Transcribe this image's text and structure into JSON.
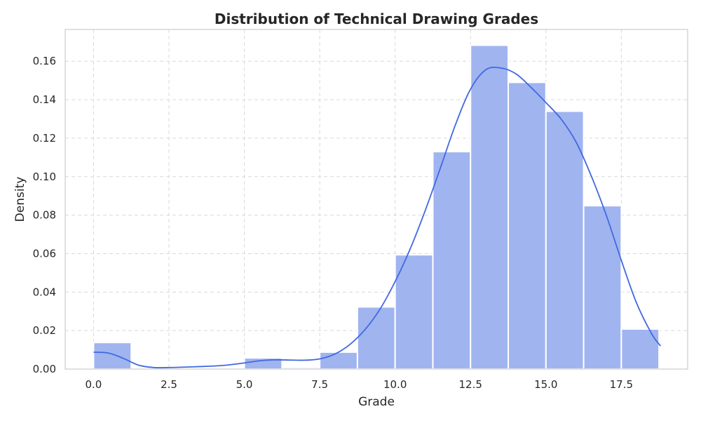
{
  "chart_data": {
    "type": "bar",
    "title": "Distribution of Technical Drawing Grades",
    "xlabel": "Grade",
    "ylabel": "Density",
    "xlim": [
      -0.94,
      19.7
    ],
    "ylim": [
      0,
      0.1765
    ],
    "xticks": [
      0.0,
      2.5,
      5.0,
      7.5,
      10.0,
      12.5,
      15.0,
      17.5
    ],
    "xtick_labels": [
      "0.0",
      "2.5",
      "5.0",
      "7.5",
      "10.0",
      "12.5",
      "15.0",
      "17.5"
    ],
    "yticks": [
      0.0,
      0.02,
      0.04,
      0.06,
      0.08,
      0.1,
      0.12,
      0.14,
      0.16
    ],
    "ytick_labels": [
      "0.00",
      "0.02",
      "0.04",
      "0.06",
      "0.08",
      "0.10",
      "0.12",
      "0.14",
      "0.16"
    ],
    "grid": true,
    "histogram": {
      "bin_edges": [
        0.0,
        1.25,
        2.5,
        3.75,
        5.0,
        6.25,
        7.5,
        8.75,
        10.0,
        11.25,
        12.5,
        13.75,
        15.0,
        16.25,
        17.5,
        18.75
      ],
      "values": [
        0.0138,
        0,
        0,
        0,
        0.0058,
        0.0008,
        0.0088,
        0.0323,
        0.0594,
        0.113,
        0.1683,
        0.149,
        0.134,
        0.0849,
        0.0208
      ]
    },
    "kde": {
      "x": [
        0.0,
        0.5,
        1.0,
        1.5,
        2.0,
        2.5,
        3.0,
        3.5,
        4.0,
        4.5,
        5.0,
        5.5,
        6.0,
        6.5,
        7.0,
        7.5,
        8.0,
        8.5,
        9.0,
        9.5,
        10.0,
        10.5,
        11.0,
        11.5,
        12.0,
        12.5,
        13.0,
        13.5,
        14.0,
        14.5,
        15.0,
        15.5,
        16.0,
        16.5,
        17.0,
        17.5,
        18.0,
        18.5,
        18.8
      ],
      "y": [
        0.0088,
        0.0083,
        0.0055,
        0.002,
        0.0008,
        0.0008,
        0.001,
        0.0013,
        0.0016,
        0.0022,
        0.0032,
        0.0043,
        0.0048,
        0.0047,
        0.0046,
        0.0053,
        0.0078,
        0.0128,
        0.0205,
        0.0312,
        0.0455,
        0.0625,
        0.0825,
        0.1045,
        0.127,
        0.1455,
        0.1555,
        0.1565,
        0.1535,
        0.1465,
        0.1385,
        0.13,
        0.118,
        0.1005,
        0.08,
        0.0565,
        0.0345,
        0.0185,
        0.012
      ]
    },
    "bar_color": "#a0b4f0",
    "line_color": "#4169e1"
  }
}
